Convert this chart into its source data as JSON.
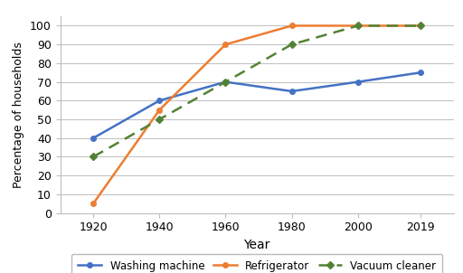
{
  "years": [
    1920,
    1940,
    1960,
    1980,
    2000,
    2019
  ],
  "washing_machine": [
    40,
    60,
    70,
    65,
    70,
    75
  ],
  "refrigerator": [
    5,
    55,
    90,
    100,
    100,
    100
  ],
  "vacuum_cleaner": [
    30,
    50,
    70,
    90,
    100,
    100
  ],
  "washing_machine_color": "#4472C4",
  "refrigerator_color": "#ED7D31",
  "vacuum_cleaner_color": "#548235",
  "ylabel": "Percentage of households",
  "xlabel": "Year",
  "ylim": [
    0,
    105
  ],
  "yticks": [
    0,
    10,
    20,
    30,
    40,
    50,
    60,
    70,
    80,
    90,
    100
  ],
  "legend_labels": [
    "Washing machine",
    "Refrigerator",
    "Vacuum cleaner"
  ],
  "background_color": "#ffffff",
  "grid_color": "#bfbfbf"
}
